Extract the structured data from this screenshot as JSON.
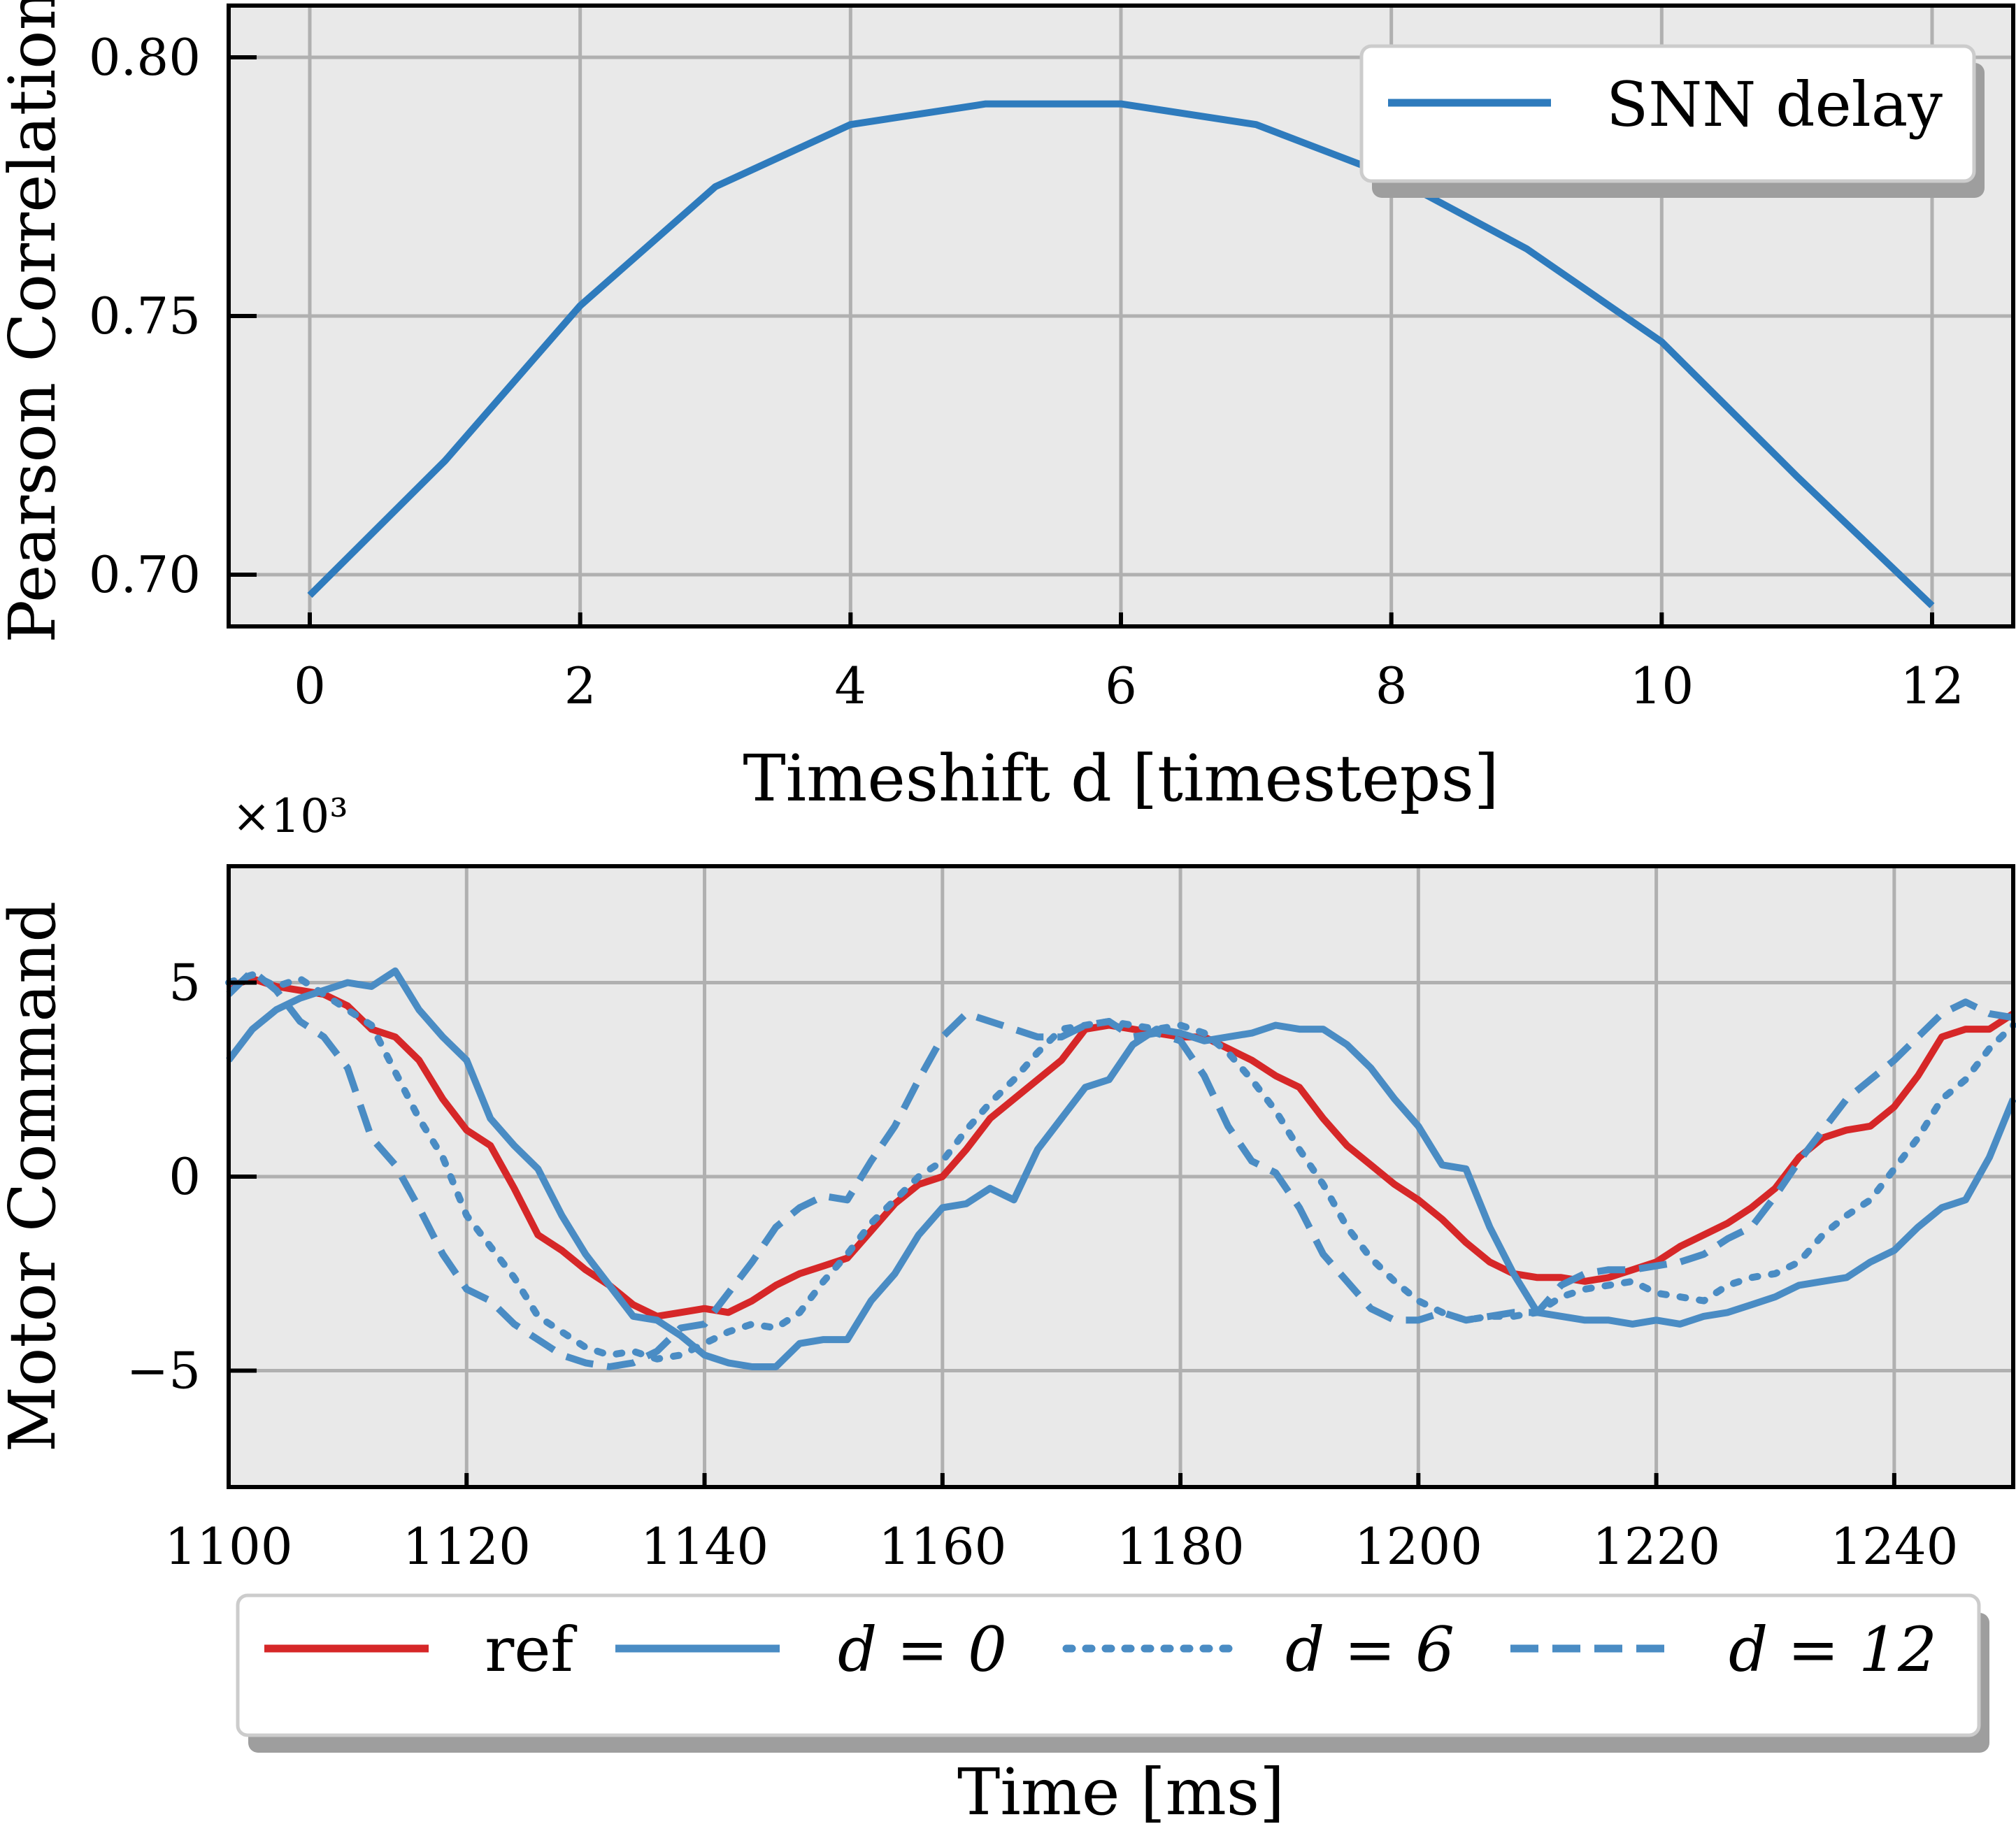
{
  "chart_data": [
    {
      "type": "line",
      "xlabel": "Timeshift d [timesteps]",
      "ylabel": "Pearson Correlation",
      "xlim": [
        -0.6,
        12.6
      ],
      "ylim": [
        0.69,
        0.81
      ],
      "xticks": [
        0,
        2,
        4,
        6,
        8,
        10,
        12
      ],
      "xtick_labels": [
        "0",
        "2",
        "4",
        "6",
        "8",
        "10",
        "12"
      ],
      "yticks": [
        0.7,
        0.75,
        0.8
      ],
      "ytick_labels": [
        "0.70",
        "0.75",
        "0.80"
      ],
      "grid": true,
      "legend_position": "top-right",
      "series": [
        {
          "name": "SNN delay",
          "color": "#2e7bbd",
          "style": "solid",
          "x": [
            0,
            1,
            2,
            3,
            4,
            5,
            6,
            7,
            8,
            9,
            10,
            11,
            12
          ],
          "y": [
            0.696,
            0.722,
            0.752,
            0.775,
            0.787,
            0.791,
            0.791,
            0.787,
            0.777,
            0.763,
            0.745,
            0.719,
            0.694
          ]
        }
      ]
    },
    {
      "type": "line",
      "xlabel": "Time [ms]",
      "ylabel": "Motor Command",
      "y_multiplier": "×10³",
      "xlim": [
        1100,
        1250
      ],
      "ylim": [
        -8,
        8
      ],
      "xticks": [
        1100,
        1120,
        1140,
        1160,
        1180,
        1200,
        1220,
        1240
      ],
      "xtick_labels": [
        "1100",
        "1120",
        "1140",
        "1160",
        "1180",
        "1200",
        "1220",
        "1240"
      ],
      "yticks": [
        -5,
        0,
        5
      ],
      "ytick_labels": [
        "−5",
        "0",
        "5"
      ],
      "grid": true,
      "legend_position": "bottom-outside",
      "series": [
        {
          "name": "ref",
          "color": "#d62728",
          "style": "solid",
          "x": [
            1100,
            1102,
            1104,
            1106,
            1108,
            1110,
            1112,
            1114,
            1116,
            1118,
            1120,
            1122,
            1124,
            1126,
            1128,
            1130,
            1132,
            1134,
            1136,
            1138,
            1140,
            1142,
            1144,
            1146,
            1148,
            1150,
            1152,
            1154,
            1156,
            1158,
            1160,
            1162,
            1164,
            1166,
            1168,
            1170,
            1172,
            1174,
            1176,
            1178,
            1180,
            1182,
            1184,
            1186,
            1188,
            1190,
            1192,
            1194,
            1196,
            1198,
            1200,
            1202,
            1204,
            1206,
            1208,
            1210,
            1212,
            1214,
            1216,
            1218,
            1220,
            1222,
            1224,
            1226,
            1228,
            1230,
            1232,
            1234,
            1236,
            1238,
            1240,
            1242,
            1244,
            1246,
            1248,
            1250
          ],
          "y": [
            4.9,
            5.1,
            4.9,
            4.8,
            4.7,
            4.4,
            3.8,
            3.6,
            3.0,
            2.0,
            1.2,
            0.8,
            -0.3,
            -1.5,
            -1.9,
            -2.4,
            -2.8,
            -3.3,
            -3.6,
            -3.5,
            -3.4,
            -3.5,
            -3.2,
            -2.8,
            -2.5,
            -2.3,
            -2.1,
            -1.4,
            -0.7,
            -0.2,
            0.0,
            0.7,
            1.5,
            2.0,
            2.5,
            3.0,
            3.8,
            3.9,
            3.8,
            3.7,
            3.6,
            3.6,
            3.3,
            3.0,
            2.6,
            2.3,
            1.5,
            0.8,
            0.3,
            -0.2,
            -0.6,
            -1.1,
            -1.7,
            -2.2,
            -2.5,
            -2.6,
            -2.6,
            -2.7,
            -2.6,
            -2.4,
            -2.2,
            -1.8,
            -1.5,
            -1.2,
            -0.8,
            -0.3,
            0.5,
            1.0,
            1.2,
            1.3,
            1.8,
            2.6,
            3.6,
            3.8,
            3.8,
            4.2
          ]
        },
        {
          "name": "d = 0",
          "color": "#4a8cc4",
          "style": "solid",
          "x": [
            1100,
            1102,
            1104,
            1106,
            1108,
            1110,
            1112,
            1114,
            1116,
            1118,
            1120,
            1122,
            1124,
            1126,
            1128,
            1130,
            1132,
            1134,
            1136,
            1138,
            1140,
            1142,
            1144,
            1146,
            1148,
            1150,
            1152,
            1154,
            1156,
            1158,
            1160,
            1162,
            1164,
            1166,
            1168,
            1170,
            1172,
            1174,
            1176,
            1178,
            1180,
            1182,
            1184,
            1186,
            1188,
            1190,
            1192,
            1194,
            1196,
            1198,
            1200,
            1202,
            1204,
            1206,
            1208,
            1210,
            1212,
            1214,
            1216,
            1218,
            1220,
            1222,
            1224,
            1226,
            1228,
            1230,
            1232,
            1234,
            1236,
            1238,
            1240,
            1242,
            1244,
            1246,
            1248,
            1250
          ],
          "y": [
            3.0,
            3.8,
            4.3,
            4.6,
            4.8,
            5.0,
            4.9,
            5.3,
            4.3,
            3.6,
            3.0,
            1.5,
            0.8,
            0.2,
            -1.0,
            -2.0,
            -2.8,
            -3.6,
            -3.7,
            -4.1,
            -4.6,
            -4.8,
            -4.9,
            -4.9,
            -4.3,
            -4.2,
            -4.2,
            -3.2,
            -2.5,
            -1.5,
            -0.8,
            -0.7,
            -0.3,
            -0.6,
            0.7,
            1.5,
            2.3,
            2.5,
            3.4,
            3.8,
            3.7,
            3.5,
            3.6,
            3.7,
            3.9,
            3.8,
            3.8,
            3.4,
            2.8,
            2.0,
            1.3,
            0.3,
            0.2,
            -1.3,
            -2.5,
            -3.5,
            -3.6,
            -3.7,
            -3.7,
            -3.8,
            -3.7,
            -3.8,
            -3.6,
            -3.5,
            -3.3,
            -3.1,
            -2.8,
            -2.7,
            -2.6,
            -2.2,
            -1.9,
            -1.3,
            -0.8,
            -0.6,
            0.5,
            2.0
          ]
        },
        {
          "name": "d = 6",
          "color": "#4a8cc4",
          "style": "dotted",
          "x": [
            1100,
            1102,
            1104,
            1106,
            1108,
            1110,
            1112,
            1114,
            1116,
            1118,
            1120,
            1122,
            1124,
            1126,
            1128,
            1130,
            1132,
            1134,
            1136,
            1138,
            1140,
            1142,
            1144,
            1146,
            1148,
            1150,
            1152,
            1154,
            1156,
            1158,
            1160,
            1162,
            1164,
            1166,
            1168,
            1170,
            1172,
            1174,
            1176,
            1178,
            1180,
            1182,
            1184,
            1186,
            1188,
            1190,
            1192,
            1194,
            1196,
            1198,
            1200,
            1202,
            1204,
            1206,
            1208,
            1210,
            1212,
            1214,
            1216,
            1218,
            1220,
            1222,
            1224,
            1226,
            1228,
            1230,
            1232,
            1234,
            1236,
            1238,
            1240,
            1242,
            1244,
            1246,
            1248,
            1250
          ],
          "y": [
            5.0,
            5.2,
            4.9,
            5.1,
            4.7,
            4.3,
            3.9,
            2.7,
            1.5,
            0.5,
            -1.0,
            -1.8,
            -2.6,
            -3.6,
            -4.0,
            -4.4,
            -4.6,
            -4.5,
            -4.7,
            -4.6,
            -4.3,
            -4.0,
            -3.8,
            -3.9,
            -3.5,
            -2.7,
            -2.0,
            -1.2,
            -0.6,
            0.0,
            0.4,
            1.2,
            1.9,
            2.5,
            3.2,
            3.8,
            3.9,
            4.0,
            3.9,
            3.8,
            3.9,
            3.7,
            3.2,
            2.5,
            1.7,
            0.7,
            -0.2,
            -1.3,
            -2.1,
            -2.7,
            -3.2,
            -3.5,
            -3.7,
            -3.6,
            -3.6,
            -3.5,
            -3.1,
            -2.9,
            -2.8,
            -2.7,
            -3.0,
            -3.1,
            -3.2,
            -2.8,
            -2.6,
            -2.5,
            -2.2,
            -1.5,
            -1.0,
            -0.6,
            0.2,
            1.0,
            2.0,
            2.5,
            3.3,
            3.9
          ]
        },
        {
          "name": "d = 12",
          "color": "#4a8cc4",
          "style": "dashed",
          "x": [
            1100,
            1102,
            1104,
            1106,
            1108,
            1110,
            1112,
            1114,
            1116,
            1118,
            1120,
            1122,
            1124,
            1126,
            1128,
            1130,
            1132,
            1134,
            1136,
            1138,
            1140,
            1142,
            1144,
            1146,
            1148,
            1150,
            1152,
            1154,
            1156,
            1158,
            1160,
            1162,
            1164,
            1166,
            1168,
            1170,
            1172,
            1174,
            1176,
            1178,
            1180,
            1182,
            1184,
            1186,
            1188,
            1190,
            1192,
            1194,
            1196,
            1198,
            1200,
            1202,
            1204,
            1206,
            1208,
            1210,
            1212,
            1214,
            1216,
            1218,
            1220,
            1222,
            1224,
            1226,
            1228,
            1230,
            1232,
            1234,
            1236,
            1238,
            1240,
            1242,
            1244,
            1246,
            1248,
            1250
          ],
          "y": [
            4.7,
            5.3,
            4.8,
            4.0,
            3.6,
            2.8,
            1.0,
            0.3,
            -0.8,
            -2.0,
            -2.9,
            -3.2,
            -3.8,
            -4.2,
            -4.6,
            -4.8,
            -4.9,
            -4.8,
            -4.5,
            -3.9,
            -3.8,
            -3.0,
            -2.2,
            -1.3,
            -0.8,
            -0.5,
            -0.6,
            0.4,
            1.3,
            2.5,
            3.6,
            4.2,
            4.0,
            3.8,
            3.6,
            3.6,
            3.9,
            4.0,
            3.6,
            3.7,
            3.5,
            2.6,
            1.3,
            0.4,
            0.1,
            -0.8,
            -2.0,
            -2.7,
            -3.4,
            -3.7,
            -3.7,
            -3.5,
            -3.7,
            -3.6,
            -3.5,
            -3.5,
            -2.8,
            -2.5,
            -2.4,
            -2.4,
            -2.3,
            -2.2,
            -2.0,
            -1.6,
            -1.3,
            -0.5,
            0.4,
            1.2,
            2.0,
            2.5,
            3.0,
            3.6,
            4.2,
            4.5,
            4.2,
            4.1
          ]
        }
      ]
    }
  ]
}
